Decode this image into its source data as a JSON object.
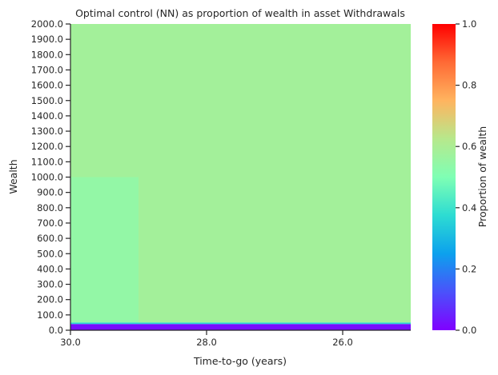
{
  "chart_data": {
    "type": "heatmap",
    "title": "Optimal control (NN) as proportion of wealth in asset Withdrawals",
    "xlabel": "Time-to-go (years)",
    "ylabel": "Wealth",
    "x_range": [
      30.0,
      25.0
    ],
    "x_ticks": [
      {
        "value": 30.0,
        "label": "30.0"
      },
      {
        "value": 28.0,
        "label": "28.0"
      },
      {
        "value": 26.0,
        "label": "26.0"
      }
    ],
    "y_range": [
      0,
      2000
    ],
    "y_ticks": [
      {
        "value": 0,
        "label": "0.0"
      },
      {
        "value": 100,
        "label": "100.0"
      },
      {
        "value": 200,
        "label": "200.0"
      },
      {
        "value": 300,
        "label": "300.0"
      },
      {
        "value": 400,
        "label": "400.0"
      },
      {
        "value": 500,
        "label": "500.0"
      },
      {
        "value": 600,
        "label": "600.0"
      },
      {
        "value": 700,
        "label": "700.0"
      },
      {
        "value": 800,
        "label": "800.0"
      },
      {
        "value": 900,
        "label": "900.0"
      },
      {
        "value": 1000,
        "label": "1000.0"
      },
      {
        "value": 1100,
        "label": "1100.0"
      },
      {
        "value": 1200,
        "label": "1200.0"
      },
      {
        "value": 1300,
        "label": "1300.0"
      },
      {
        "value": 1400,
        "label": "1400.0"
      },
      {
        "value": 1500,
        "label": "1500.0"
      },
      {
        "value": 1600,
        "label": "1600.0"
      },
      {
        "value": 1700,
        "label": "1700.0"
      },
      {
        "value": 1800,
        "label": "1800.0"
      },
      {
        "value": 1900,
        "label": "1900.0"
      },
      {
        "value": 2000,
        "label": "2000.0"
      }
    ],
    "regions": [
      {
        "x0": 30.0,
        "x1": 25.0,
        "y0": 1000,
        "y1": 2000,
        "value": 0.58
      },
      {
        "x0": 29.0,
        "x1": 25.0,
        "y0": 50,
        "y1": 1000,
        "value": 0.58
      },
      {
        "x0": 30.0,
        "x1": 29.0,
        "y0": 50,
        "y1": 1000,
        "value": 0.545
      },
      {
        "x0": 30.0,
        "x1": 25.0,
        "y0": 40,
        "y1": 50,
        "value": 0.36
      },
      {
        "x0": 30.0,
        "x1": 25.0,
        "y0": 0,
        "y1": 40,
        "value": 0.02
      }
    ],
    "colorbar": {
      "label": "Proportion of wealth",
      "range": [
        0.0,
        1.0
      ],
      "colormap": "rainbow",
      "ticks": [
        {
          "value": 0.0,
          "label": "0.0"
        },
        {
          "value": 0.2,
          "label": "0.2"
        },
        {
          "value": 0.4,
          "label": "0.4"
        },
        {
          "value": 0.6,
          "label": "0.6"
        },
        {
          "value": 0.8,
          "label": "0.8"
        },
        {
          "value": 1.0,
          "label": "1.0"
        }
      ]
    }
  }
}
